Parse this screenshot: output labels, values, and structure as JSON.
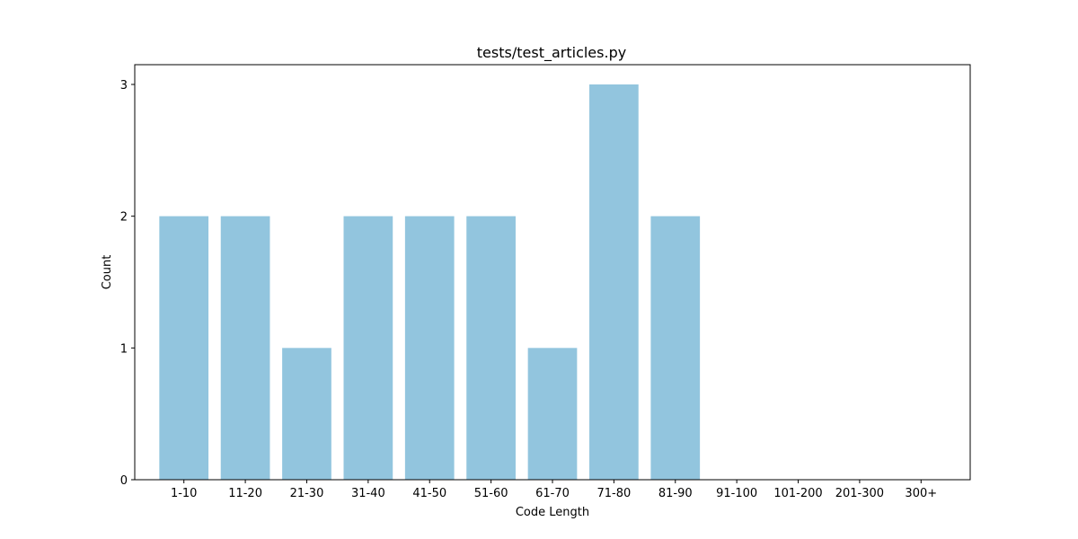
{
  "chart_data": {
    "type": "bar",
    "title": "tests/test_articles.py",
    "xlabel": "Code Length",
    "ylabel": "Count",
    "categories": [
      "1-10",
      "11-20",
      "21-30",
      "31-40",
      "41-50",
      "51-60",
      "61-70",
      "71-80",
      "81-90",
      "91-100",
      "101-200",
      "201-300",
      "300+"
    ],
    "values": [
      2,
      2,
      1,
      2,
      2,
      2,
      1,
      3,
      2,
      0,
      0,
      0,
      0
    ],
    "yticks": [
      "0",
      "1",
      "2",
      "3"
    ],
    "ylim": [
      0,
      3.15
    ],
    "grid": false,
    "bar_color": "#92c5de"
  }
}
